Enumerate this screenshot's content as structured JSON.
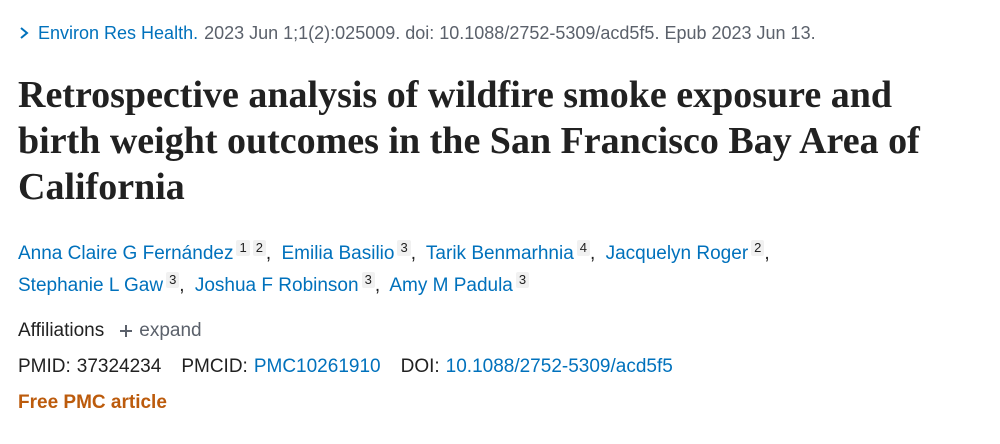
{
  "citation": {
    "journal": "Environ Res Health.",
    "details": "2023 Jun 1;1(2):025009. doi: 10.1088/2752-5309/acd5f5. Epub 2023 Jun 13."
  },
  "title": "Retrospective analysis of wildfire smoke exposure and birth weight outcomes in the San Francisco Bay Area of California",
  "authors": [
    {
      "name": "Anna Claire G Fernández",
      "affiliations": [
        "1",
        "2"
      ]
    },
    {
      "name": "Emilia Basilio",
      "affiliations": [
        "3"
      ]
    },
    {
      "name": "Tarik Benmarhnia",
      "affiliations": [
        "4"
      ]
    },
    {
      "name": "Jacquelyn Roger",
      "affiliations": [
        "2"
      ]
    },
    {
      "name": "Stephanie L Gaw",
      "affiliations": [
        "3"
      ]
    },
    {
      "name": "Joshua F Robinson",
      "affiliations": [
        "3"
      ]
    },
    {
      "name": "Amy M Padula",
      "affiliations": [
        "3"
      ]
    }
  ],
  "affiliations": {
    "label": "Affiliations",
    "toggle": "expand"
  },
  "identifiers": [
    {
      "label": "PMID:",
      "value": "37324234"
    },
    {
      "label": "PMCID:",
      "value": "PMC10261910"
    },
    {
      "label": "DOI:",
      "value": "10.1088/2752-5309/acd5f5"
    }
  ],
  "free_pmc": "Free PMC article"
}
